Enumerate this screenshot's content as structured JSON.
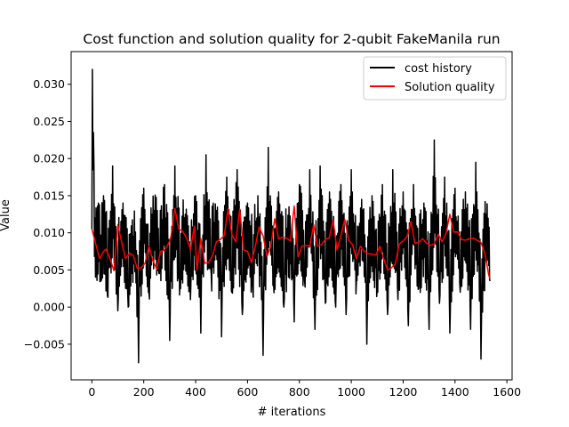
{
  "chart_data": {
    "type": "line",
    "title": "Cost function and solution quality for 2-qubit FakeManila run",
    "xlabel": "# iterations",
    "ylabel": "Value",
    "xlim": [
      -80,
      1620
    ],
    "ylim": [
      -0.0098,
      0.0344
    ],
    "xticks": [
      0,
      200,
      400,
      600,
      800,
      1000,
      1200,
      1400,
      1600
    ],
    "xtick_labels": [
      "0",
      "200",
      "400",
      "600",
      "800",
      "1000",
      "1200",
      "1400",
      "1600"
    ],
    "yticks": [
      -0.005,
      0.0,
      0.005,
      0.01,
      0.015,
      0.02,
      0.025,
      0.03
    ],
    "ytick_labels": [
      "−0.005",
      "0.000",
      "0.005",
      "0.010",
      "0.015",
      "0.020",
      "0.025",
      "0.030"
    ],
    "grid": false,
    "legend": {
      "placement": "top-right",
      "entries": [
        "cost history",
        "Solution quality"
      ]
    },
    "series": [
      {
        "name": "cost history",
        "color": "#000000",
        "note_values": "noisy per-iteration cost; envelope sampled as [iteration, value] pairs",
        "x": [
          0,
          2,
          4,
          6,
          8,
          12,
          18,
          25,
          35,
          45,
          60,
          80,
          100,
          120,
          140,
          160,
          180,
          200,
          220,
          240,
          260,
          280,
          300,
          320,
          340,
          360,
          380,
          400,
          420,
          440,
          460,
          480,
          500,
          520,
          540,
          560,
          580,
          600,
          620,
          640,
          660,
          680,
          700,
          720,
          740,
          760,
          780,
          800,
          820,
          840,
          860,
          880,
          900,
          920,
          940,
          960,
          980,
          1000,
          1020,
          1040,
          1060,
          1080,
          1100,
          1120,
          1140,
          1160,
          1180,
          1200,
          1220,
          1240,
          1260,
          1280,
          1300,
          1320,
          1340,
          1360,
          1380,
          1400,
          1420,
          1440,
          1460,
          1480,
          1500,
          1520,
          1535
        ],
        "values": [
          0.0105,
          0.032,
          0.0185,
          0.0235,
          0.019,
          0.012,
          0.006,
          0.014,
          0.0035,
          0.015,
          0.0015,
          0.019,
          -0.0005,
          0.014,
          0.0,
          0.0095,
          -0.0075,
          0.016,
          0.002,
          0.013,
          0.0045,
          0.0165,
          -0.0045,
          0.019,
          0.0035,
          0.0125,
          0.001,
          0.015,
          -0.0035,
          0.0205,
          0.0045,
          0.013,
          -0.004,
          0.0175,
          0.002,
          0.0185,
          -0.001,
          0.014,
          0.0025,
          0.015,
          -0.0065,
          0.0215,
          0.0035,
          0.0155,
          0.0,
          0.0135,
          -0.002,
          0.0165,
          0.0035,
          0.0185,
          -0.003,
          0.019,
          0.0005,
          0.0145,
          0.0,
          0.0165,
          -0.001,
          0.0185,
          0.0035,
          0.0145,
          -0.005,
          0.015,
          0.0025,
          0.0165,
          -0.001,
          0.0185,
          0.001,
          0.0155,
          -0.0025,
          0.0165,
          0.0025,
          0.014,
          -0.003,
          0.0225,
          0.0005,
          0.0175,
          -0.0035,
          0.016,
          0.002,
          0.0155,
          -0.003,
          0.0195,
          -0.007,
          0.0125,
          0.0035
        ]
      },
      {
        "name": "Solution quality",
        "color": "#ff0000",
        "x": [
          0,
          15,
          30,
          45,
          55,
          70,
          85,
          100,
          115,
          130,
          145,
          160,
          175,
          190,
          205,
          220,
          235,
          250,
          265,
          280,
          295,
          305,
          320,
          335,
          350,
          365,
          380,
          395,
          405,
          420,
          435,
          450,
          465,
          480,
          495,
          510,
          525,
          540,
          555,
          570,
          585,
          600,
          615,
          630,
          645,
          660,
          675,
          690,
          705,
          720,
          735,
          750,
          765,
          780,
          795,
          810,
          825,
          840,
          855,
          870,
          885,
          900,
          915,
          930,
          945,
          960,
          975,
          990,
          1005,
          1020,
          1035,
          1050,
          1065,
          1080,
          1095,
          1110,
          1125,
          1140,
          1155,
          1170,
          1185,
          1200,
          1215,
          1230,
          1245,
          1260,
          1275,
          1290,
          1305,
          1320,
          1335,
          1350,
          1365,
          1380,
          1395,
          1410,
          1425,
          1440,
          1455,
          1470,
          1485,
          1500,
          1515,
          1530,
          1535
        ],
        "values": [
          0.0105,
          0.0085,
          0.0065,
          0.0075,
          0.0078,
          0.0065,
          0.0049,
          0.0111,
          0.0087,
          0.0065,
          0.0073,
          0.0069,
          0.0052,
          0.0053,
          0.0059,
          0.0082,
          0.0063,
          0.0051,
          0.0075,
          0.0077,
          0.0085,
          0.0095,
          0.0133,
          0.0105,
          0.0102,
          0.0093,
          0.0077,
          0.0109,
          0.005,
          0.0092,
          0.0059,
          0.006,
          0.0069,
          0.0088,
          0.0091,
          0.0096,
          0.0132,
          0.0097,
          0.0088,
          0.0132,
          0.0077,
          0.0075,
          0.006,
          0.0082,
          0.0108,
          0.0096,
          0.0068,
          0.0082,
          0.0119,
          0.0092,
          0.0094,
          0.0093,
          0.0089,
          0.0136,
          0.0068,
          0.0082,
          0.0083,
          0.0082,
          0.0111,
          0.0082,
          0.0084,
          0.0091,
          0.0093,
          0.0117,
          0.0077,
          0.0096,
          0.0118,
          0.009,
          0.0084,
          0.0065,
          0.0082,
          0.0075,
          0.0072,
          0.0071,
          0.007,
          0.0082,
          0.0065,
          0.005,
          0.0053,
          0.0058,
          0.0085,
          0.0089,
          0.0095,
          0.0115,
          0.0086,
          0.0087,
          0.0092,
          0.0086,
          0.0083,
          0.0085,
          0.0098,
          0.0088,
          0.0099,
          0.0125,
          0.0101,
          0.0101,
          0.0091,
          0.009,
          0.0092,
          0.0093,
          0.009,
          0.0087,
          0.0072,
          0.0043,
          0.0038
        ]
      }
    ]
  }
}
